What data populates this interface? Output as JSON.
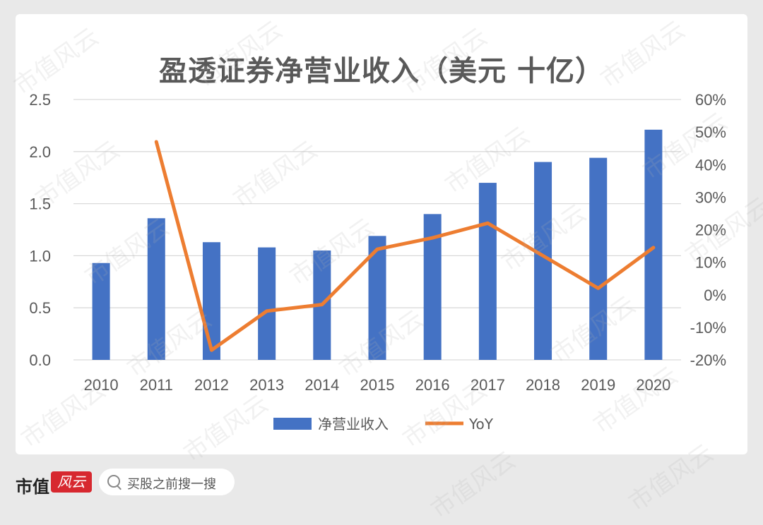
{
  "chart_data": {
    "type": "bar",
    "title": "盈透证券净营业收入（美元 十亿）",
    "categories": [
      "2010",
      "2011",
      "2012",
      "2013",
      "2014",
      "2015",
      "2016",
      "2017",
      "2018",
      "2019",
      "2020"
    ],
    "series": [
      {
        "name": "净营业收入",
        "type": "bar",
        "axis": "left",
        "color": "#4472c4",
        "values": [
          0.93,
          1.36,
          1.13,
          1.08,
          1.05,
          1.19,
          1.4,
          1.7,
          1.9,
          1.94,
          2.21
        ]
      },
      {
        "name": "YoY",
        "type": "line",
        "axis": "right",
        "color": "#ed7d31",
        "values": [
          null,
          47,
          -17,
          -5,
          -3,
          14,
          17.5,
          22,
          12,
          2,
          14.5
        ]
      }
    ],
    "left_axis": {
      "min": 0,
      "max": 2.5,
      "ticks": [
        "0.0",
        "0.5",
        "1.0",
        "1.5",
        "2.0",
        "2.5"
      ]
    },
    "right_axis": {
      "min": -20,
      "max": 60,
      "ticks": [
        "-20%",
        "-10%",
        "0%",
        "10%",
        "20%",
        "30%",
        "40%",
        "50%",
        "60%"
      ]
    },
    "grid": true,
    "legend_position": "bottom"
  },
  "footer": {
    "brand": "市值",
    "brand_badge": "风云",
    "search_placeholder": "买股之前搜一搜"
  },
  "watermark": "市值风云"
}
